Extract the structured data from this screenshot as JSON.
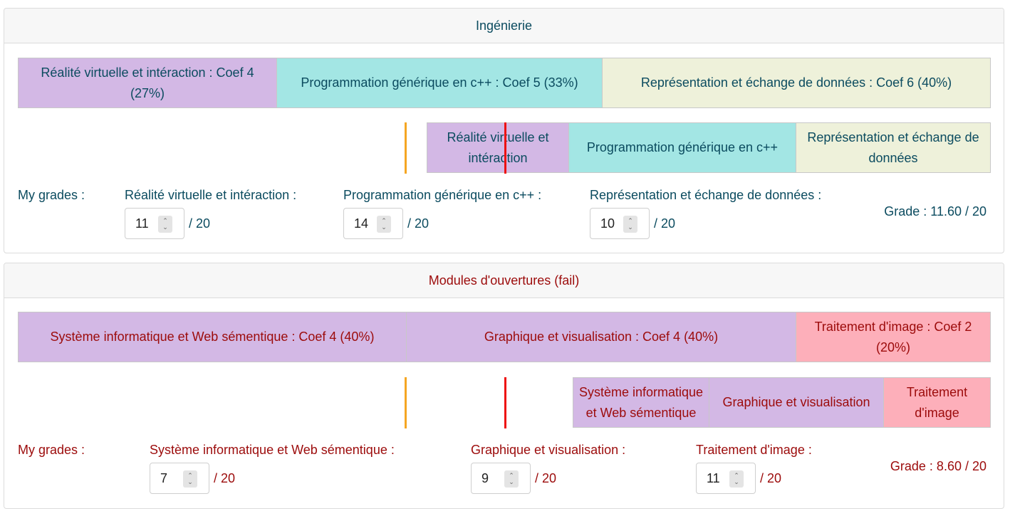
{
  "colors": {
    "purple": "#d3b8e5",
    "cyan": "#a3e6e4",
    "cream": "#eef1da",
    "pink": "#fdafba",
    "orange": "#f5a623",
    "red_line": "#ee1111",
    "teal_text": "#0b4b5f",
    "fail_text": "#9c0b0b"
  },
  "ue1": {
    "title": "Ingénierie",
    "coef_bar": [
      {
        "label": "Réalité virtuelle et intéraction : Coef 4 (27%)",
        "color": "purple"
      },
      {
        "label": "Programmation générique en c++ : Coef 5 (33%)",
        "color": "cyan"
      },
      {
        "label": "Représentation et échange de données : Coef 6 (40%)",
        "color": "cream"
      }
    ],
    "grade_bar": [
      {
        "label": "Réalité virtuelle et intéraction",
        "color": "purple"
      },
      {
        "label": "Programmation générique en c++",
        "color": "cyan"
      },
      {
        "label": "Représentation et échange de données",
        "color": "cream"
      }
    ],
    "my_grades_label": "My grades :",
    "grades": [
      {
        "label": "Réalité virtuelle et intéraction :",
        "value": "11",
        "out_of": "/ 20"
      },
      {
        "label": "Programmation générique en c++ :",
        "value": "14",
        "out_of": "/ 20"
      },
      {
        "label": "Représentation et échange de données :",
        "value": "10",
        "out_of": "/ 20"
      }
    ],
    "total": "Grade : 11.60 / 20"
  },
  "ue2": {
    "title": "Modules d'ouvertures (fail)",
    "coef_bar": [
      {
        "label": "Système informatique et Web sémentique : Coef 4 (40%)",
        "color": "purple"
      },
      {
        "label": "Graphique et visualisation : Coef 4 (40%)",
        "color": "purple"
      },
      {
        "label": "Traitement d'image : Coef 2 (20%)",
        "color": "pink"
      }
    ],
    "grade_bar": [
      {
        "label": "Système informatique et Web sémentique",
        "color": "purple"
      },
      {
        "label": "Graphique et visualisation",
        "color": "purple"
      },
      {
        "label": "Traitement d'image",
        "color": "pink"
      }
    ],
    "my_grades_label": "My grades :",
    "grades": [
      {
        "label": "Système informatique et Web sémentique :",
        "value": "7",
        "out_of": "/ 20"
      },
      {
        "label": "Graphique et visualisation :",
        "value": "9",
        "out_of": "/ 20"
      },
      {
        "label": "Traitement d'image :",
        "value": "11",
        "out_of": "/ 20"
      }
    ],
    "total": "Grade : 8.60 / 20"
  }
}
